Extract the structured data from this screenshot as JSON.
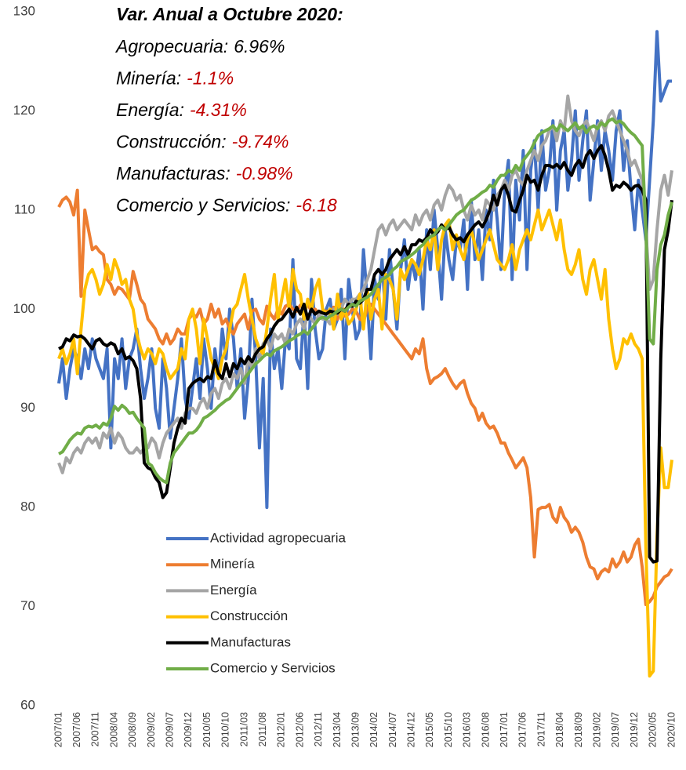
{
  "chart_data": {
    "type": "line",
    "annotation": {
      "title": "Var. Anual a Octubre 2020:",
      "lines": [
        {
          "label": "Agropecuaria:",
          "value": "6.96%",
          "color": "#000000"
        },
        {
          "label": "Minería:",
          "value": "-1.1%",
          "color": "#c00000"
        },
        {
          "label": "Energía:",
          "value": "-4.31%",
          "color": "#c00000"
        },
        {
          "label": "Construcción:",
          "value": "-9.74%",
          "color": "#c00000"
        },
        {
          "label": "Manufacturas:",
          "value": "-0.98%",
          "color": "#c00000"
        },
        {
          "label": "Comercio y Servicios:",
          "value": "-6.18",
          "color": "#c00000"
        }
      ]
    },
    "categories": [
      "2007/01",
      null,
      null,
      null,
      null,
      "2007/06",
      null,
      null,
      null,
      null,
      "2007/11",
      null,
      null,
      null,
      null,
      "2008/04",
      null,
      null,
      null,
      null,
      "2008/09",
      null,
      null,
      null,
      null,
      "2009/02",
      null,
      null,
      null,
      null,
      "2009/07",
      null,
      null,
      null,
      null,
      "2009/12",
      null,
      null,
      null,
      null,
      "2010/05",
      null,
      null,
      null,
      null,
      "2010/10",
      null,
      null,
      null,
      null,
      "2011/03",
      null,
      null,
      null,
      null,
      "2011/08",
      null,
      null,
      null,
      null,
      "2012/01",
      null,
      null,
      null,
      null,
      "2012/06",
      null,
      null,
      null,
      null,
      "2012/11",
      null,
      null,
      null,
      null,
      "2013/04",
      null,
      null,
      null,
      null,
      "2013/09",
      null,
      null,
      null,
      null,
      "2014/02",
      null,
      null,
      null,
      null,
      "2014/07",
      null,
      null,
      null,
      null,
      "2014/12",
      null,
      null,
      null,
      null,
      "2015/05",
      null,
      null,
      null,
      null,
      "2015/10",
      null,
      null,
      null,
      null,
      "2016/03",
      null,
      null,
      null,
      null,
      "2016/08",
      null,
      null,
      null,
      null,
      "2017/01",
      null,
      null,
      null,
      null,
      "2017/06",
      null,
      null,
      null,
      null,
      "2017/11",
      null,
      null,
      null,
      null,
      "2018/04",
      null,
      null,
      null,
      null,
      "2018/09",
      null,
      null,
      null,
      null,
      "2019/02",
      null,
      null,
      null,
      null,
      "2019/07",
      null,
      null,
      null,
      null,
      "2019/12",
      null,
      null,
      null,
      null,
      "2020/05",
      null,
      null,
      null,
      null,
      "2020/10"
    ],
    "series": [
      {
        "name": "Actividad agropecuaria",
        "color": "#4472c4",
        "values": [
          92.5,
          95,
          91,
          94,
          96,
          95,
          93,
          96,
          94,
          97,
          95,
          94,
          93,
          96,
          86,
          95,
          93,
          97,
          92,
          95,
          96,
          98,
          94,
          91,
          93,
          96,
          90,
          88,
          95,
          92,
          87,
          90,
          93,
          97,
          91,
          89,
          92,
          95,
          91,
          97,
          94,
          90,
          96,
          93,
          98,
          95,
          100,
          97,
          92,
          96,
          89,
          93,
          101,
          95,
          86,
          93,
          80,
          98,
          94,
          96,
          92,
          97,
          96,
          105,
          95,
          94,
          100,
          92,
          103,
          98,
          95,
          96,
          100,
          101,
          98,
          99,
          102,
          95,
          103,
          100,
          97,
          98,
          106,
          101,
          95,
          103,
          101,
          105,
          99,
          106,
          102,
          98,
          104,
          107,
          102,
          105,
          103,
          106,
          100,
          108,
          104,
          110,
          106,
          101,
          108,
          105,
          103,
          107,
          106,
          109,
          102,
          111,
          105,
          108,
          103,
          110,
          107,
          113,
          109,
          104,
          112,
          115,
          103,
          113,
          109,
          116,
          104,
          114,
          117,
          110,
          118,
          112,
          114,
          119,
          110,
          116,
          118,
          112,
          115,
          120,
          113,
          117,
          120,
          111,
          115,
          119,
          114,
          118,
          116,
          113,
          118,
          120,
          114,
          117,
          112,
          108,
          113,
          110,
          107,
          113,
          119,
          128,
          121,
          122,
          123,
          123
        ]
      },
      {
        "name": "Minería",
        "color": "#ed7d31",
        "values": [
          110.3,
          111,
          111.3,
          110.8,
          109.5,
          112,
          101.3,
          110,
          108,
          106,
          106.3,
          105.8,
          105.5,
          103,
          102.5,
          101.5,
          102.2,
          102,
          101.5,
          101,
          103.8,
          102.5,
          101,
          100.5,
          99,
          98.5,
          98,
          97,
          96.5,
          97.5,
          96.5,
          97,
          98,
          97.5,
          97.5,
          99,
          99.5,
          99.2,
          100,
          98.5,
          99,
          100.5,
          99.2,
          100,
          98.5,
          99,
          98,
          97.5,
          98.5,
          99,
          99.5,
          98,
          99.8,
          100,
          99,
          98.5,
          100.3,
          99.5,
          99,
          100,
          99.5,
          100.3,
          100.5,
          100,
          99.8,
          100.4,
          100.2,
          100.5,
          99.8,
          100,
          99.5,
          99.8,
          99.8,
          99.5,
          100.2,
          99,
          100.5,
          99.3,
          99.5,
          100,
          99.8,
          99,
          98.8,
          100,
          100.5,
          100,
          99.5,
          99,
          98.5,
          98,
          97.5,
          97,
          96.5,
          96,
          95.5,
          95,
          96,
          95.5,
          97,
          94,
          92.5,
          93,
          93.2,
          93.5,
          94,
          93.2,
          92.5,
          92,
          92.5,
          92.8,
          91.5,
          90.5,
          90,
          88.8,
          89.5,
          88.5,
          88,
          88.2,
          87.5,
          86.5,
          86.5,
          85.5,
          84.8,
          84,
          84.5,
          85,
          84,
          81,
          75,
          79.8,
          80,
          80,
          80.3,
          79,
          78.5,
          80,
          79,
          78.5,
          77.5,
          78,
          77.5,
          76.5,
          75,
          74,
          73.8,
          72.8,
          73.5,
          73.8,
          73.5,
          74.8,
          74,
          74.5,
          75.5,
          74.5,
          75,
          76.2,
          76.8,
          74,
          70.2,
          70.5,
          71,
          72,
          72.5,
          73,
          73.2,
          73.8
        ]
      },
      {
        "name": "Energía",
        "color": "#a5a5a5",
        "values": [
          84.5,
          83.5,
          85,
          84.5,
          85.5,
          86,
          85.5,
          86.5,
          87,
          86.5,
          87,
          86,
          87.5,
          87,
          88,
          86.5,
          87.5,
          87,
          86,
          85.5,
          85.5,
          86,
          85.5,
          86,
          86,
          87,
          86.5,
          85,
          86.5,
          87.5,
          88,
          88.5,
          89,
          88,
          89.5,
          90,
          90,
          89.5,
          90.5,
          91,
          90,
          91.5,
          92,
          91,
          92.5,
          93,
          92,
          93.5,
          93,
          94,
          92.5,
          95,
          94,
          96,
          95,
          96.5,
          97,
          96,
          97.5,
          97,
          97.5,
          96.5,
          98,
          97.5,
          98.5,
          99,
          98,
          99.5,
          99,
          98.5,
          99.5,
          99,
          99,
          98.5,
          100,
          99.5,
          100,
          101,
          100.5,
          101,
          101,
          101.5,
          102,
          103,
          104,
          106,
          108,
          108.5,
          107.5,
          108.5,
          109,
          108,
          108.5,
          109,
          108.5,
          108,
          109.5,
          108.5,
          109.5,
          110,
          109,
          110.5,
          111,
          110,
          111.5,
          112.5,
          112,
          111,
          111.5,
          110,
          109,
          110.5,
          109.5,
          110,
          109,
          111,
          110.5,
          110,
          111.5,
          112,
          113,
          112,
          113.5,
          114,
          113,
          112.5,
          114,
          115,
          116,
          115,
          116.5,
          117,
          118,
          118.5,
          117,
          119,
          118,
          121.5,
          119,
          118,
          117.5,
          118.5,
          119,
          118,
          117,
          118.5,
          119,
          118,
          119.5,
          120,
          119,
          118,
          117,
          116,
          114.5,
          115,
          114,
          113,
          108,
          102,
          103,
          108,
          112,
          113.5,
          111.5,
          114
        ]
      },
      {
        "name": "Construcción",
        "color": "#ffc000",
        "values": [
          95,
          96,
          94.5,
          95.5,
          97,
          93.5,
          98,
          102,
          103.5,
          104,
          103,
          101.5,
          102.5,
          104.5,
          103,
          105,
          104,
          102.5,
          103,
          101,
          100,
          97.5,
          96,
          95,
          96,
          95.5,
          94.5,
          96,
          95.5,
          94,
          93,
          93.5,
          94,
          96,
          95,
          99,
          100,
          98,
          94.5,
          99,
          97,
          95,
          94,
          93,
          95,
          96,
          98,
          100,
          100.5,
          102,
          103.5,
          101,
          99,
          97,
          96,
          95.5,
          98,
          101,
          103.5,
          99,
          101,
          103,
          100,
          104,
          102,
          101.5,
          99,
          101,
          100,
          102,
          103,
          100,
          99.5,
          100,
          98,
          101.5,
          99,
          100,
          98.5,
          99,
          100,
          101.5,
          98,
          102,
          99,
          101,
          102,
          98,
          103.5,
          103,
          102,
          99,
          104,
          103,
          104,
          105,
          104.5,
          103.5,
          105,
          107,
          106,
          108,
          104,
          107,
          108.5,
          109,
          106,
          107.5,
          106,
          105,
          107,
          108,
          106.5,
          105,
          106,
          107,
          108,
          106.5,
          105,
          104.5,
          104,
          105,
          106.5,
          104,
          106,
          107,
          108,
          107,
          108.5,
          110,
          108,
          109,
          110,
          108.5,
          107,
          109,
          106,
          104,
          103.5,
          104.5,
          106,
          103,
          101.5,
          104,
          105,
          103,
          101,
          104,
          99,
          96,
          94,
          95,
          97,
          96.5,
          97.5,
          96.5,
          96,
          95,
          76,
          63,
          63.5,
          77,
          86,
          82,
          82,
          84.8
        ]
      },
      {
        "name": "Manufacturas",
        "color": "#000000",
        "values": [
          96,
          96.2,
          97,
          96.8,
          97.4,
          97.2,
          97.3,
          97,
          96.5,
          96,
          96.8,
          97,
          96.5,
          96.3,
          96.6,
          96.4,
          95.5,
          96,
          95,
          95.2,
          94.8,
          94,
          91,
          84.5,
          84,
          83.8,
          83,
          82.5,
          81,
          81.5,
          84,
          86.5,
          88,
          89,
          88.5,
          92,
          92.5,
          92.8,
          93,
          92.7,
          93.2,
          93,
          94.8,
          93.5,
          93,
          94.5,
          93.2,
          94.5,
          94,
          95,
          94.5,
          95.2,
          94.7,
          95.5,
          96,
          96.2,
          97,
          97.5,
          98.3,
          98.8,
          99,
          99.5,
          100,
          99.2,
          100.2,
          99.5,
          100.5,
          99,
          100,
          99.5,
          99.8,
          99.6,
          99.5,
          99.8,
          99.7,
          99.6,
          100,
          99.8,
          100.5,
          100.3,
          100.8,
          100.6,
          101,
          102,
          102,
          103.5,
          104,
          103.5,
          104,
          105,
          105.5,
          106,
          105.5,
          106.3,
          105.5,
          106.5,
          106.5,
          107,
          106.8,
          107.2,
          108,
          107.5,
          107.8,
          108.5,
          108,
          108.3,
          107.5,
          107,
          107.2,
          106.8,
          107.5,
          108,
          108.5,
          108.8,
          108.3,
          109,
          110,
          111.5,
          110.5,
          112,
          112.5,
          111.5,
          110,
          109.8,
          111,
          112,
          113.5,
          112.8,
          113,
          112,
          113.5,
          114.5,
          114.5,
          114.3,
          114.6,
          114.2,
          114.8,
          114,
          113.5,
          114.5,
          115,
          114.3,
          115.5,
          116,
          115.2,
          116,
          116.5,
          115.5,
          114,
          112,
          112.5,
          112.3,
          112.8,
          112.5,
          112,
          112.4,
          112.5,
          112,
          111,
          75,
          74.5,
          74.6,
          95,
          106,
          108,
          111
        ]
      },
      {
        "name": "Comercio y Servicios",
        "color": "#70ad47",
        "values": [
          85.4,
          85.6,
          86.2,
          86.8,
          87.2,
          87.5,
          87.4,
          88,
          88.2,
          88.1,
          88.3,
          88,
          88.5,
          88.3,
          89,
          90.2,
          89.8,
          90.3,
          90,
          89.5,
          89.6,
          89,
          88.5,
          88,
          84.5,
          84.2,
          83.5,
          83,
          82.7,
          82.5,
          84.5,
          85.5,
          86,
          86.5,
          87,
          87.5,
          87.5,
          87.8,
          88.3,
          89,
          89.2,
          89.5,
          89.8,
          90.2,
          90.5,
          90.8,
          91,
          91.5,
          92,
          92.5,
          93,
          93.5,
          94,
          94.5,
          94.8,
          95.2,
          95.5,
          95.3,
          95.8,
          96,
          96.2,
          96.5,
          96.8,
          97,
          97.3,
          97.5,
          97.8,
          97.5,
          98,
          98.5,
          99,
          99.2,
          99,
          99.3,
          99.5,
          99.8,
          100,
          99.8,
          100.2,
          100.5,
          100.3,
          100.8,
          101,
          101.2,
          101.5,
          102,
          102.5,
          103,
          103.2,
          103.5,
          104,
          104.3,
          104.8,
          105,
          105.2,
          105.5,
          105.8,
          106.2,
          106.5,
          107,
          107.3,
          107.5,
          108,
          108.3,
          108,
          108.5,
          109,
          109.5,
          109.8,
          110,
          110.5,
          111,
          111.2,
          111.5,
          111.8,
          112,
          112.5,
          112.3,
          113,
          113.5,
          113.5,
          114,
          113.8,
          114.5,
          114,
          115,
          115.5,
          116,
          116.8,
          117.5,
          117.8,
          118,
          118.2,
          118.5,
          118,
          118.6,
          118.3,
          118,
          118.4,
          118.8,
          118.2,
          118.5,
          117.8,
          118.3,
          118.5,
          118.2,
          118.8,
          118.5,
          119,
          119.2,
          118.8,
          119,
          118.7,
          118.2,
          117.8,
          117.5,
          117,
          116.5,
          108,
          97,
          96.5,
          104,
          106.5,
          107.5,
          109.5,
          110.8
        ]
      }
    ],
    "ylim": [
      60,
      130
    ],
    "yticks": [
      60,
      70,
      80,
      90,
      100,
      110,
      120,
      130
    ],
    "grid": false,
    "legend": "lower center"
  }
}
